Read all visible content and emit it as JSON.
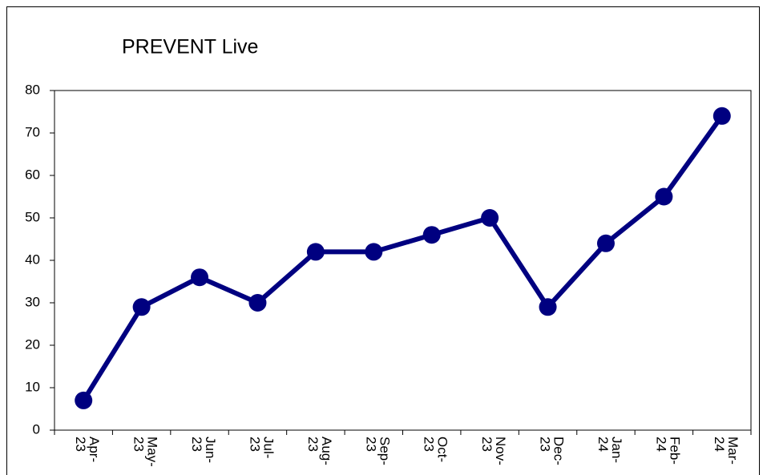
{
  "chart_data": {
    "type": "line",
    "title": "PREVENT Live",
    "categories": [
      "Apr-23",
      "May-23",
      "Jun-23",
      "Jul-23",
      "Aug-23",
      "Sep-23",
      "Oct-23",
      "Nov-23",
      "Dec-23",
      "Jan-24",
      "Feb-24",
      "Mar-24"
    ],
    "values": [
      7,
      29,
      36,
      30,
      42,
      42,
      46,
      50,
      29,
      44,
      55,
      74
    ],
    "color": "#000080",
    "ylim": [
      0,
      80
    ],
    "yticks": [
      0,
      10,
      20,
      30,
      40,
      50,
      60,
      70,
      80
    ],
    "grid": false
  }
}
